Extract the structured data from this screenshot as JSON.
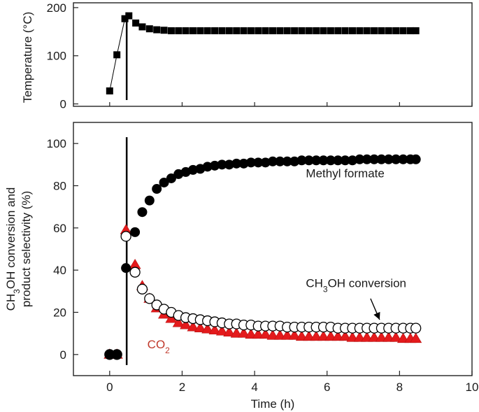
{
  "chart_data": [
    {
      "type": "scatter",
      "ylabel": "Temperature (°C)",
      "xlim": [
        -1,
        10
      ],
      "ylim": [
        -5,
        210
      ],
      "yticks": [
        0,
        100,
        200
      ],
      "series": [
        {
          "marker": "filled-square",
          "color": "#000000",
          "connected_first_points": 4,
          "points": [
            [
              0,
              27
            ],
            [
              0.2,
              102
            ],
            [
              0.42,
              177
            ],
            [
              0.53,
              183
            ],
            [
              0.72,
              168
            ],
            [
              0.9,
              160
            ],
            [
              1.1,
              156
            ],
            [
              1.3,
              154
            ],
            [
              1.5,
              153
            ],
            [
              1.7,
              152
            ],
            [
              1.9,
              152
            ],
            [
              2.1,
              152
            ],
            [
              2.3,
              152
            ],
            [
              2.5,
              152
            ],
            [
              2.7,
              152
            ],
            [
              2.9,
              152
            ],
            [
              3.1,
              152
            ],
            [
              3.3,
              152
            ],
            [
              3.5,
              152
            ],
            [
              3.7,
              152
            ],
            [
              3.9,
              152
            ],
            [
              4.1,
              152
            ],
            [
              4.3,
              152
            ],
            [
              4.5,
              152
            ],
            [
              4.7,
              152
            ],
            [
              4.9,
              152
            ],
            [
              5.1,
              152
            ],
            [
              5.3,
              152
            ],
            [
              5.5,
              152
            ],
            [
              5.7,
              152
            ],
            [
              5.9,
              152
            ],
            [
              6.1,
              152
            ],
            [
              6.3,
              152
            ],
            [
              6.5,
              152
            ],
            [
              6.7,
              152
            ],
            [
              6.9,
              152
            ],
            [
              7.1,
              152
            ],
            [
              7.3,
              152
            ],
            [
              7.5,
              152
            ],
            [
              7.7,
              152
            ],
            [
              7.9,
              152
            ],
            [
              8.1,
              152
            ],
            [
              8.3,
              152
            ],
            [
              8.45,
              152
            ]
          ]
        }
      ],
      "vertical_line_x": 0.47,
      "grid": false
    },
    {
      "type": "scatter",
      "xlabel": "Time (h)",
      "ylabel_line1": "CH3OH conversion and",
      "ylabel_line2": "product selectivity (%)",
      "ylabel_line1_parts": [
        "CH",
        "3",
        "OH conversion and"
      ],
      "xlim": [
        -1,
        10
      ],
      "ylim": [
        -10,
        110
      ],
      "xticks": [
        0,
        2,
        4,
        6,
        8,
        10
      ],
      "yticks": [
        0,
        20,
        40,
        60,
        80,
        100
      ],
      "vertical_line_x": 0.47,
      "grid": false,
      "series": [
        {
          "name": "Methyl formate",
          "marker": "filled-circle",
          "color": "#000000",
          "points": [
            [
              0,
              0
            ],
            [
              0.2,
              0
            ],
            [
              0.45,
              41
            ],
            [
              0.7,
              58
            ],
            [
              0.9,
              67.5
            ],
            [
              1.1,
              73
            ],
            [
              1.3,
              78.5
            ],
            [
              1.5,
              81.5
            ],
            [
              1.7,
              83.5
            ],
            [
              1.9,
              85.5
            ],
            [
              2.1,
              86.5
            ],
            [
              2.3,
              87.5
            ],
            [
              2.5,
              88
            ],
            [
              2.7,
              89
            ],
            [
              2.9,
              89.5
            ],
            [
              3.1,
              90
            ],
            [
              3.3,
              90
            ],
            [
              3.5,
              90.5
            ],
            [
              3.7,
              90.5
            ],
            [
              3.9,
              91
            ],
            [
              4.1,
              91
            ],
            [
              4.3,
              91
            ],
            [
              4.5,
              91.5
            ],
            [
              4.7,
              91.5
            ],
            [
              4.9,
              91.5
            ],
            [
              5.1,
              91.5
            ],
            [
              5.3,
              92
            ],
            [
              5.5,
              92
            ],
            [
              5.7,
              92
            ],
            [
              5.9,
              92
            ],
            [
              6.1,
              92
            ],
            [
              6.3,
              92
            ],
            [
              6.5,
              92
            ],
            [
              6.7,
              92
            ],
            [
              6.9,
              92.5
            ],
            [
              7.1,
              92.5
            ],
            [
              7.3,
              92.5
            ],
            [
              7.5,
              92.5
            ],
            [
              7.7,
              92.5
            ],
            [
              7.9,
              92.5
            ],
            [
              8.1,
              92.5
            ],
            [
              8.3,
              92.5
            ],
            [
              8.45,
              92.5
            ]
          ]
        },
        {
          "name": "CH3OH conversion",
          "label_parts": [
            "CH",
            "3",
            "OH conversion"
          ],
          "marker": "open-circle",
          "color": "#000000",
          "points": [
            [
              0,
              0
            ],
            [
              0.2,
              0
            ],
            [
              0.45,
              56
            ],
            [
              0.7,
              39
            ],
            [
              0.9,
              31
            ],
            [
              1.1,
              26.5
            ],
            [
              1.3,
              23.5
            ],
            [
              1.5,
              21.5
            ],
            [
              1.7,
              20
            ],
            [
              1.9,
              18.5
            ],
            [
              2.1,
              17.5
            ],
            [
              2.3,
              17
            ],
            [
              2.5,
              16.5
            ],
            [
              2.7,
              16
            ],
            [
              2.9,
              15.5
            ],
            [
              3.1,
              15
            ],
            [
              3.3,
              14.5
            ],
            [
              3.5,
              14.5
            ],
            [
              3.7,
              14
            ],
            [
              3.9,
              14
            ],
            [
              4.1,
              13.5
            ],
            [
              4.3,
              13.5
            ],
            [
              4.5,
              13.5
            ],
            [
              4.7,
              13.5
            ],
            [
              4.9,
              13
            ],
            [
              5.1,
              13
            ],
            [
              5.3,
              13
            ],
            [
              5.5,
              13
            ],
            [
              5.7,
              13
            ],
            [
              5.9,
              13
            ],
            [
              6.1,
              13
            ],
            [
              6.3,
              12.5
            ],
            [
              6.5,
              12.5
            ],
            [
              6.7,
              12.5
            ],
            [
              6.9,
              12.5
            ],
            [
              7.1,
              12.5
            ],
            [
              7.3,
              12.5
            ],
            [
              7.5,
              12.5
            ],
            [
              7.7,
              12.5
            ],
            [
              7.9,
              12.5
            ],
            [
              8.1,
              12.5
            ],
            [
              8.3,
              12.5
            ],
            [
              8.45,
              12.5
            ]
          ]
        },
        {
          "name": "CO2",
          "label_parts": [
            "CO",
            "2"
          ],
          "marker": "filled-triangle",
          "color": "#e41a1c",
          "points": [
            [
              0,
              0
            ],
            [
              0.2,
              0
            ],
            [
              0.45,
              59
            ],
            [
              0.7,
              42.5
            ],
            [
              0.9,
              32.5
            ],
            [
              1.1,
              26.5
            ],
            [
              1.3,
              22
            ],
            [
              1.5,
              19
            ],
            [
              1.7,
              17
            ],
            [
              1.9,
              15
            ],
            [
              2.1,
              14
            ],
            [
              2.3,
              13
            ],
            [
              2.5,
              12.5
            ],
            [
              2.7,
              12
            ],
            [
              2.9,
              11.5
            ],
            [
              3.1,
              11
            ],
            [
              3.3,
              10.5
            ],
            [
              3.5,
              10
            ],
            [
              3.7,
              10
            ],
            [
              3.9,
              9.5
            ],
            [
              4.1,
              9.5
            ],
            [
              4.3,
              9.5
            ],
            [
              4.5,
              9
            ],
            [
              4.7,
              9
            ],
            [
              4.9,
              9
            ],
            [
              5.1,
              9
            ],
            [
              5.3,
              8.5
            ],
            [
              5.5,
              8.5
            ],
            [
              5.7,
              8.5
            ],
            [
              5.9,
              8.5
            ],
            [
              6.1,
              8.5
            ],
            [
              6.3,
              8.5
            ],
            [
              6.5,
              8.5
            ],
            [
              6.7,
              8
            ],
            [
              6.9,
              8
            ],
            [
              7.1,
              8
            ],
            [
              7.3,
              8
            ],
            [
              7.5,
              8
            ],
            [
              7.7,
              8
            ],
            [
              7.9,
              8
            ],
            [
              8.1,
              7.5
            ],
            [
              8.3,
              7.5
            ],
            [
              8.45,
              7.5
            ]
          ]
        }
      ],
      "annotations": [
        {
          "text": "Methyl formate",
          "at": [
            6.5,
            84
          ],
          "color": "#1a1a1a"
        },
        {
          "parts": [
            "CH",
            "3",
            "OH conversion"
          ],
          "at": [
            6.8,
            32
          ],
          "color": "#1a1a1a",
          "arrow_to": [
            7.45,
            16.5
          ]
        },
        {
          "parts": [
            "CO",
            "2"
          ],
          "at": [
            1.35,
            3
          ],
          "color": "#c0392b"
        }
      ]
    }
  ]
}
